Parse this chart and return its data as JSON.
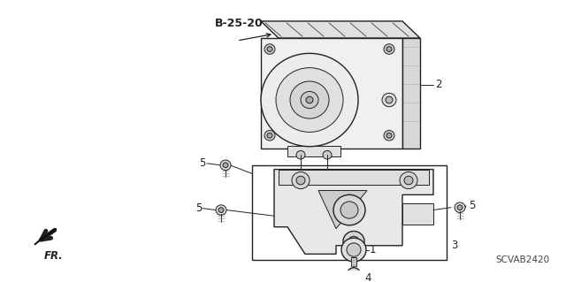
{
  "bg_color": "#ffffff",
  "line_color": "#222222",
  "label_color": "#000000",
  "diagram_id": "SCVAB2420",
  "ref_label": "B-25-20",
  "direction_label": "FR.",
  "figsize": [
    6.4,
    3.19
  ],
  "dpi": 100,
  "hatch_color": "#aaaaaa"
}
